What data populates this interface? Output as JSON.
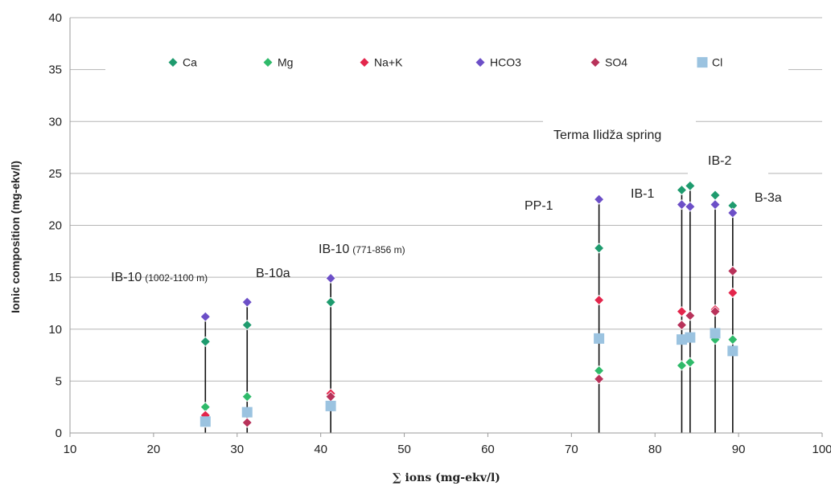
{
  "chart_data": {
    "type": "scatter",
    "xlabel": "∑ ions (mg-ekv/l)",
    "ylabel": "Ionic composition (mg-ekv/l)",
    "xlim": [
      10,
      100
    ],
    "ylim": [
      0,
      40
    ],
    "xticks": [
      "10",
      "20",
      "30",
      "40",
      "50",
      "60",
      "70",
      "80",
      "90",
      "100"
    ],
    "yticks": [
      "0",
      "5",
      "10",
      "15",
      "20",
      "25",
      "30",
      "35",
      "40"
    ],
    "grid": "horizontal",
    "legend_position": "top",
    "x": [
      26.2,
      31.2,
      41.2,
      73.3,
      83.2,
      84.2,
      87.2,
      89.3
    ],
    "series": [
      {
        "name": "Ca",
        "marker": "diamond",
        "color": "#1e9b6e",
        "values": [
          8.8,
          10.4,
          12.6,
          17.8,
          23.4,
          23.8,
          22.9,
          21.9
        ]
      },
      {
        "name": "Mg",
        "marker": "diamond",
        "color": "#2fba6a",
        "values": [
          2.5,
          3.5,
          3.7,
          6.0,
          6.5,
          6.8,
          9.0,
          9.0
        ]
      },
      {
        "name": "Na+K",
        "marker": "diamond",
        "color": "#e3264c",
        "values": [
          1.7,
          1.0,
          3.8,
          12.8,
          11.7,
          11.3,
          11.9,
          13.5
        ]
      },
      {
        "name": "HCO3",
        "marker": "diamond",
        "color": "#6c4fc7",
        "values": [
          11.2,
          12.6,
          14.9,
          22.5,
          22.0,
          21.8,
          22.0,
          21.2
        ]
      },
      {
        "name": "SO4",
        "marker": "diamond",
        "color": "#b8325a",
        "values": [
          1.0,
          1.0,
          3.5,
          5.2,
          10.4,
          11.3,
          11.7,
          15.6
        ]
      },
      {
        "name": "Cl",
        "marker": "square",
        "color": "#9bc3e0",
        "values": [
          1.1,
          2.0,
          2.6,
          9.1,
          9.0,
          9.2,
          9.6,
          7.9
        ]
      }
    ],
    "annotations": [
      {
        "text": "IB-10",
        "sub": "(1002-1100 m)"
      },
      {
        "text": "B-10a",
        "sub": ""
      },
      {
        "text": "IB-10",
        "sub": "(771-856 m)"
      },
      {
        "text": "PP-1",
        "sub": ""
      },
      {
        "text": "IB-1",
        "sub": ""
      },
      {
        "text": "IB-2",
        "sub": ""
      },
      {
        "text": "B-3a",
        "sub": ""
      },
      {
        "text": "Terma Ilidža spring",
        "sub": ""
      }
    ]
  }
}
